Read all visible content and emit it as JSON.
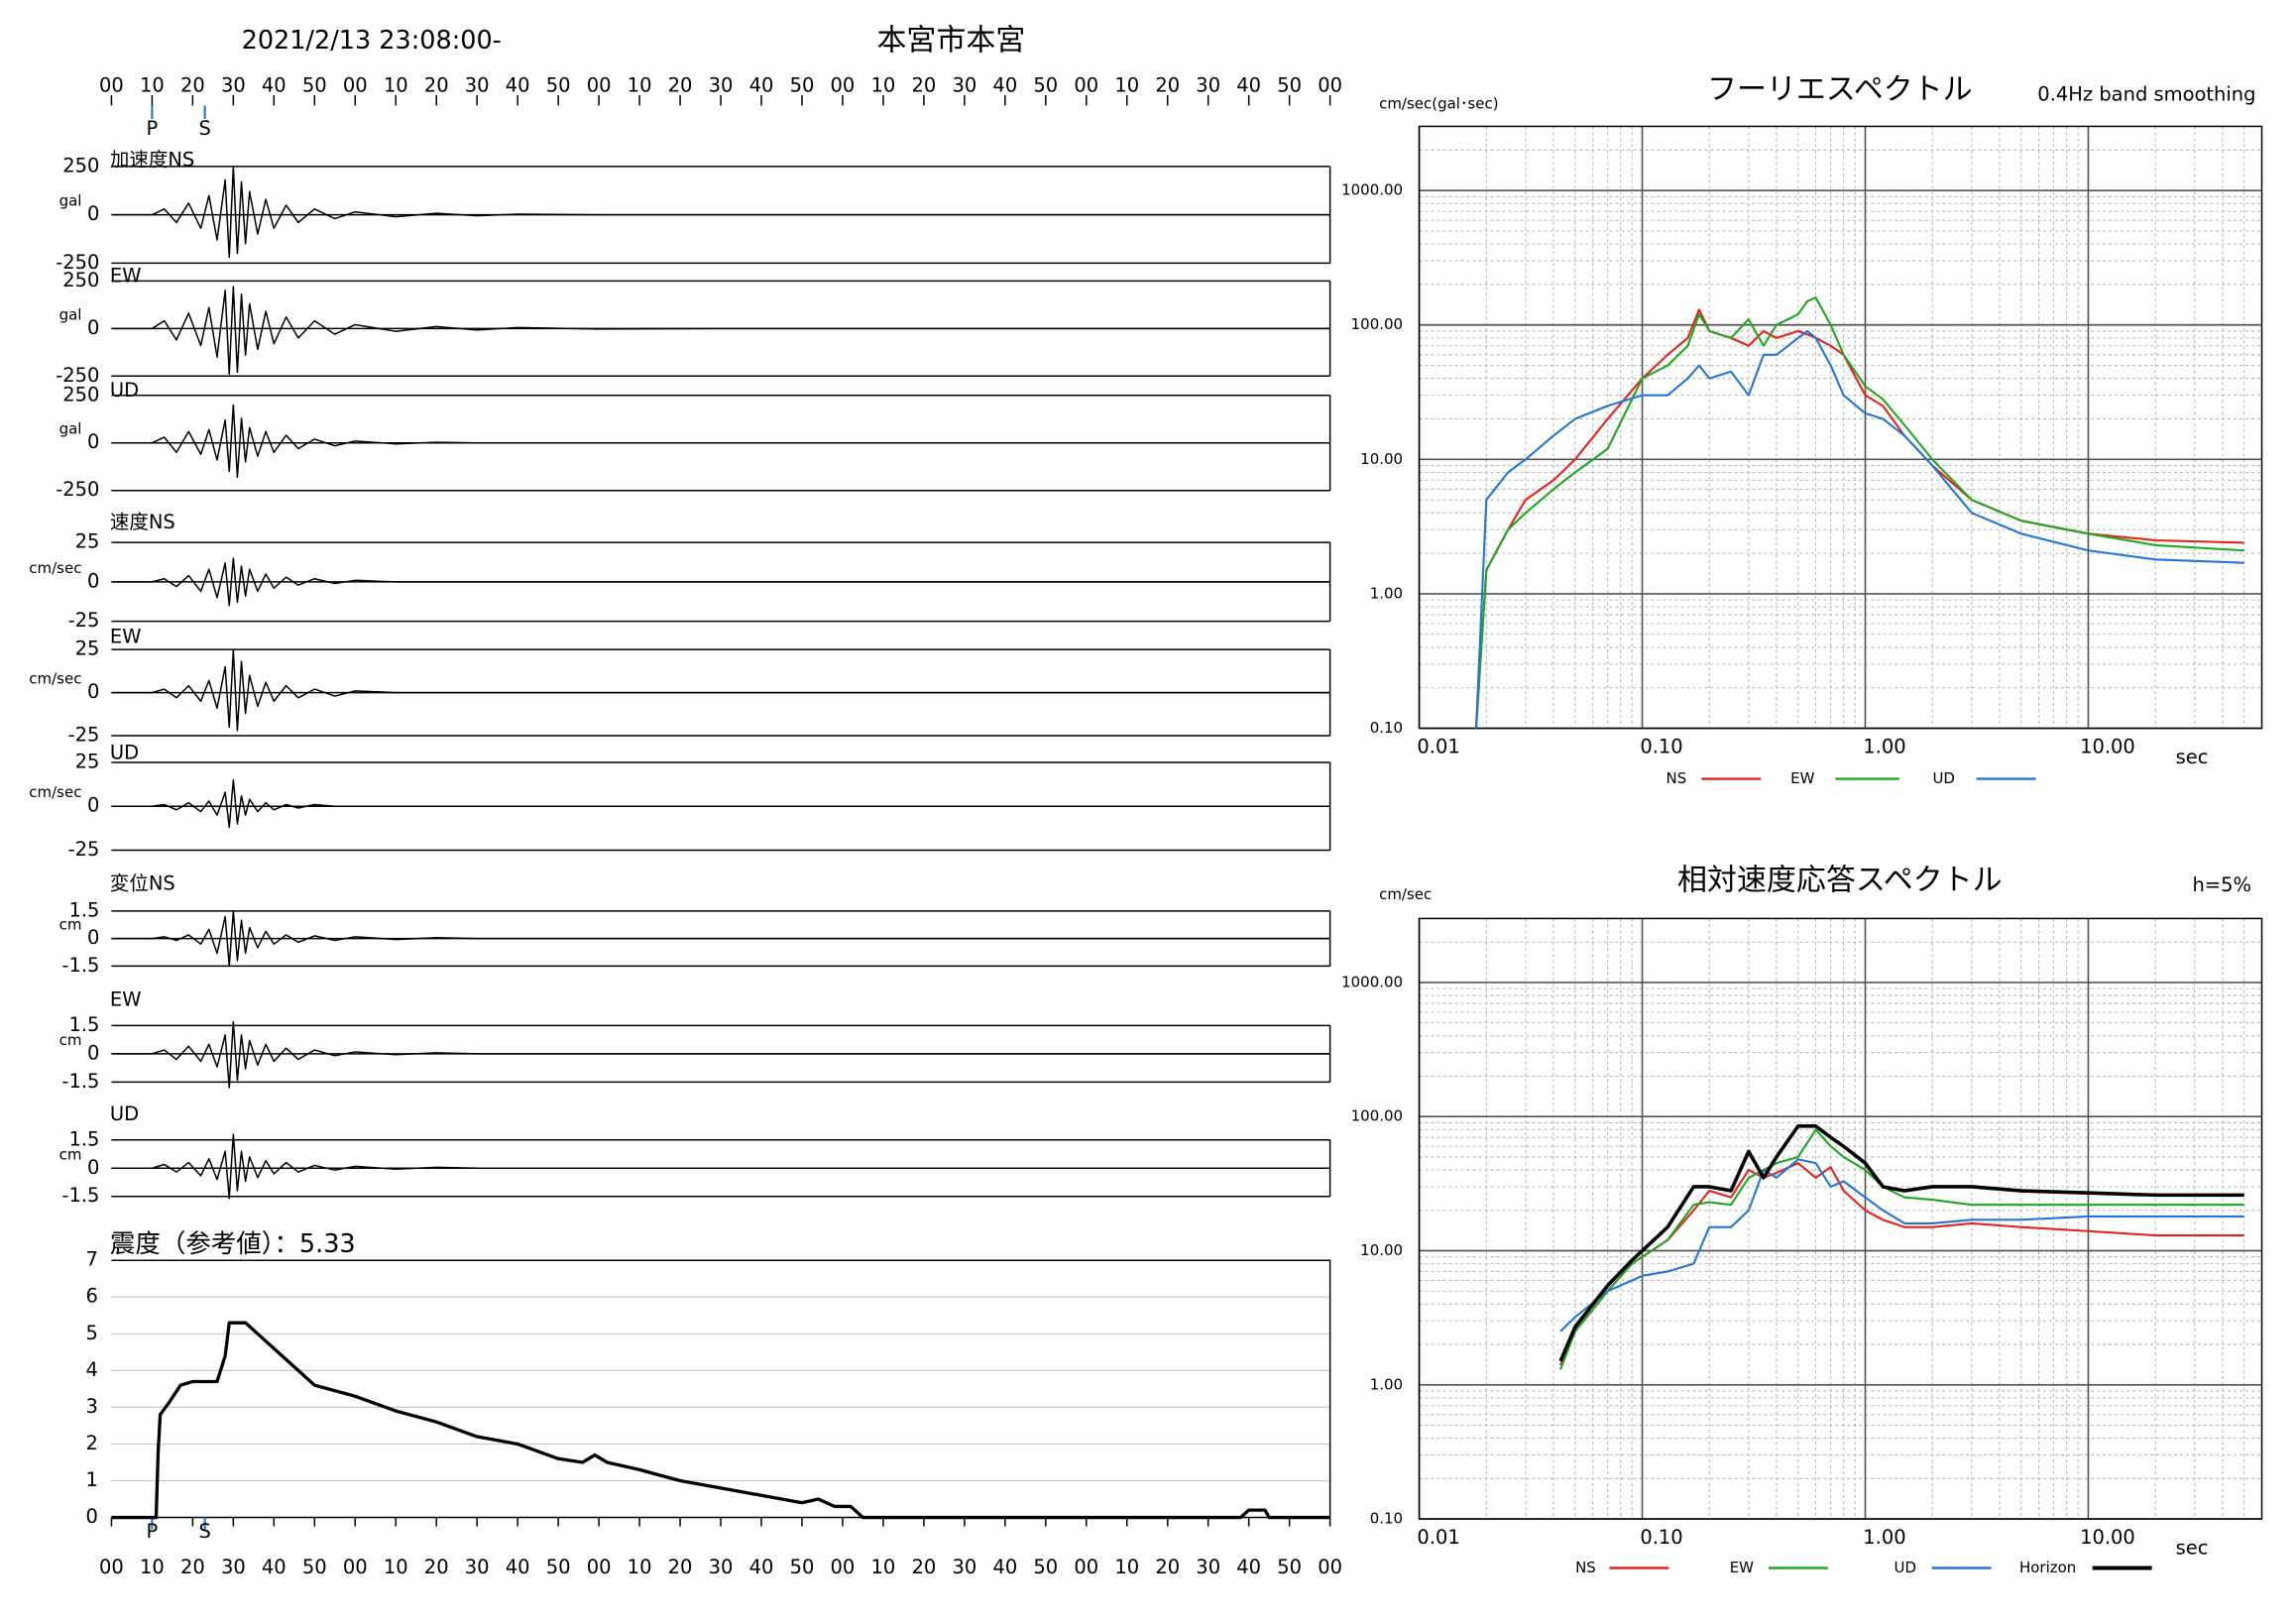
{
  "chart_data": [
    {
      "type": "line",
      "title": "本宮市本宮",
      "subtitle": "2021/2/13 23:08:00-",
      "xlim": [
        0,
        300
      ],
      "xticks": [
        {
          "value": 0,
          "label": "00"
        },
        10,
        20,
        30,
        40,
        50,
        {
          "value": 60,
          "label": "00"
        },
        {
          "value": 70,
          "label": "10"
        },
        {
          "value": 80,
          "label": "20"
        },
        {
          "value": 90,
          "label": "30"
        },
        {
          "value": 100,
          "label": "40"
        },
        {
          "value": 110,
          "label": "50"
        },
        {
          "value": 120,
          "label": "00"
        },
        {
          "value": 130,
          "label": "10"
        },
        {
          "value": 140,
          "label": "20"
        },
        {
          "value": 150,
          "label": "30"
        },
        {
          "value": 160,
          "label": "40"
        },
        {
          "value": 170,
          "label": "50"
        },
        {
          "value": 180,
          "label": "00"
        },
        {
          "value": 190,
          "label": "10"
        },
        {
          "value": 200,
          "label": "20"
        },
        {
          "value": 210,
          "label": "30"
        },
        {
          "value": 220,
          "label": "40"
        },
        {
          "value": 230,
          "label": "50"
        },
        {
          "value": 240,
          "label": "00"
        },
        {
          "value": 250,
          "label": "10"
        },
        {
          "value": 260,
          "label": "20"
        },
        {
          "value": 270,
          "label": "30"
        },
        {
          "value": 280,
          "label": "40"
        },
        {
          "value": 290,
          "label": "50"
        },
        {
          "value": 300,
          "label": "00"
        }
      ],
      "phases": [
        {
          "label": "P",
          "value": 10
        },
        {
          "label": "S",
          "value": 23
        }
      ],
      "x": [
        0,
        10,
        13,
        16,
        19,
        22,
        24,
        26,
        28,
        29,
        30,
        31,
        32,
        33,
        34,
        36,
        38,
        40,
        43,
        46,
        50,
        55,
        60,
        70,
        80,
        90,
        100,
        120,
        150,
        200,
        250,
        300
      ],
      "panels": [
        {
          "label": "加速度NS",
          "unit": "gal",
          "ylim": [
            -250,
            250
          ],
          "yticks": [
            -250,
            0,
            250
          ],
          "color": "#000000",
          "values": [
            0,
            0,
            30,
            -40,
            60,
            -70,
            100,
            -130,
            180,
            -220,
            250,
            -200,
            170,
            -150,
            120,
            -100,
            80,
            -70,
            50,
            -40,
            30,
            -20,
            15,
            -10,
            8,
            -5,
            3,
            0,
            0,
            0,
            0,
            0
          ]
        },
        {
          "label": "EW",
          "unit": "gal",
          "ylim": [
            -250,
            250
          ],
          "yticks": [
            -250,
            0,
            250
          ],
          "color": "#000000",
          "values": [
            0,
            0,
            40,
            -60,
            80,
            -90,
            110,
            -150,
            200,
            -240,
            220,
            -230,
            180,
            -140,
            130,
            -110,
            90,
            -80,
            60,
            -50,
            40,
            -30,
            20,
            -15,
            10,
            -8,
            5,
            -3,
            0,
            0,
            0,
            0
          ]
        },
        {
          "label": "UD",
          "unit": "gal",
          "ylim": [
            -250,
            250
          ],
          "yticks": [
            -250,
            0,
            250
          ],
          "color": "#000000",
          "values": [
            0,
            0,
            30,
            -50,
            60,
            -60,
            70,
            -90,
            120,
            -150,
            200,
            -180,
            130,
            -100,
            80,
            -70,
            60,
            -50,
            40,
            -30,
            20,
            -15,
            10,
            -5,
            3,
            0,
            0,
            0,
            0,
            0,
            0,
            0
          ]
        },
        {
          "label": "速度NS",
          "unit": "cm/sec",
          "ylim": [
            -25,
            25
          ],
          "yticks": [
            -25,
            0,
            25
          ],
          "color": "#000000",
          "values": [
            0,
            0,
            2,
            -3,
            4,
            -6,
            8,
            -10,
            12,
            -15,
            15,
            -13,
            10,
            -9,
            8,
            -6,
            5,
            -4,
            3,
            -2,
            2,
            -1,
            1,
            0,
            0,
            0,
            0,
            0,
            0,
            0,
            0,
            0
          ]
        },
        {
          "label": "EW",
          "unit": "cm/sec",
          "ylim": [
            -25,
            25
          ],
          "yticks": [
            -25,
            0,
            25
          ],
          "color": "#000000",
          "values": [
            0,
            0,
            2,
            -3,
            4,
            -5,
            7,
            -9,
            15,
            -20,
            25,
            -22,
            18,
            -12,
            10,
            -8,
            6,
            -5,
            4,
            -3,
            2,
            -2,
            1,
            0,
            0,
            0,
            0,
            0,
            0,
            0,
            0,
            0
          ]
        },
        {
          "label": "UD",
          "unit": "cm/sec",
          "ylim": [
            -25,
            25
          ],
          "yticks": [
            -25,
            0,
            25
          ],
          "color": "#000000",
          "values": [
            0,
            0,
            1,
            -2,
            2,
            -3,
            3,
            -5,
            8,
            -12,
            15,
            -10,
            6,
            -5,
            4,
            -3,
            2,
            -2,
            1,
            -1,
            1,
            0,
            0,
            0,
            0,
            0,
            0,
            0,
            0,
            0,
            0,
            0
          ]
        },
        {
          "label": "変位NS",
          "unit": "cm",
          "ylim": [
            -1.5,
            1.5
          ],
          "yticks": [
            -1.5,
            0,
            1.5
          ],
          "color": "#000000",
          "values": [
            0,
            0,
            0.1,
            -0.1,
            0.2,
            -0.3,
            0.5,
            -0.8,
            1.2,
            -1.5,
            1.5,
            -1.2,
            1.0,
            -0.8,
            0.6,
            -0.5,
            0.4,
            -0.3,
            0.2,
            -0.2,
            0.15,
            -0.1,
            0.1,
            -0.05,
            0.05,
            0,
            0,
            0,
            0,
            0,
            0,
            0
          ]
        },
        {
          "label": "EW",
          "unit": "cm",
          "ylim": [
            -1.5,
            1.5
          ],
          "yticks": [
            -1.5,
            0,
            1.5
          ],
          "color": "#000000",
          "values": [
            0,
            0,
            0.2,
            -0.3,
            0.4,
            -0.4,
            0.5,
            -0.7,
            1.0,
            -1.8,
            1.7,
            -1.4,
            1.0,
            -0.8,
            0.7,
            -0.6,
            0.5,
            -0.4,
            0.3,
            -0.3,
            0.2,
            -0.1,
            0.1,
            -0.05,
            0.05,
            0,
            0,
            0,
            0,
            0,
            0,
            0
          ]
        },
        {
          "label": "UD",
          "unit": "cm",
          "ylim": [
            -1.5,
            1.5
          ],
          "yticks": [
            -1.5,
            0,
            1.5
          ],
          "color": "#000000",
          "values": [
            0,
            0,
            0.2,
            -0.2,
            0.3,
            -0.4,
            0.5,
            -0.6,
            0.9,
            -1.6,
            1.8,
            -1.2,
            0.9,
            -0.7,
            0.6,
            -0.5,
            0.4,
            -0.3,
            0.3,
            -0.2,
            0.15,
            -0.1,
            0.1,
            -0.05,
            0.05,
            0,
            0,
            0,
            0,
            0,
            0,
            0
          ]
        }
      ]
    },
    {
      "type": "line",
      "title": "震度（参考値）：5.33",
      "xlim": [
        0,
        300
      ],
      "xticks": [
        {
          "value": 0,
          "label": "00"
        },
        10,
        20,
        30,
        40,
        50,
        {
          "value": 60,
          "label": "00"
        },
        {
          "value": 70,
          "label": "10"
        },
        {
          "value": 80,
          "label": "20"
        },
        {
          "value": 90,
          "label": "30"
        },
        {
          "value": 100,
          "label": "40"
        },
        {
          "value": 110,
          "label": "50"
        },
        {
          "value": 120,
          "label": "00"
        },
        {
          "value": 130,
          "label": "10"
        },
        {
          "value": 140,
          "label": "20"
        },
        {
          "value": 150,
          "label": "30"
        },
        {
          "value": 160,
          "label": "40"
        },
        {
          "value": 170,
          "label": "50"
        },
        {
          "value": 180,
          "label": "00"
        },
        {
          "value": 190,
          "label": "10"
        },
        {
          "value": 200,
          "label": "20"
        },
        {
          "value": 210,
          "label": "30"
        },
        {
          "value": 220,
          "label": "40"
        },
        {
          "value": 230,
          "label": "50"
        },
        {
          "value": 240,
          "label": "00"
        },
        {
          "value": 250,
          "label": "10"
        },
        {
          "value": 260,
          "label": "20"
        },
        {
          "value": 270,
          "label": "30"
        },
        {
          "value": 280,
          "label": "40"
        },
        {
          "value": 290,
          "label": "50"
        },
        {
          "value": 300,
          "label": "00"
        }
      ],
      "phases": [
        {
          "label": "P",
          "value": 10
        },
        {
          "label": "S",
          "value": 23
        }
      ],
      "ylim": [
        0,
        7
      ],
      "yticks": [
        0,
        1,
        2,
        3,
        4,
        5,
        6,
        7
      ],
      "grid": true,
      "color": "#000000",
      "x": [
        0,
        10,
        11,
        11.5,
        12,
        14,
        17,
        20,
        26,
        28,
        29,
        33,
        36,
        40,
        45,
        50,
        60,
        70,
        80,
        90,
        100,
        110,
        116,
        119,
        122,
        130,
        140,
        150,
        160,
        170,
        174,
        178,
        182,
        185,
        278,
        280,
        284,
        285,
        300
      ],
      "values": [
        0,
        0,
        0,
        1.8,
        2.8,
        3.1,
        3.6,
        3.7,
        3.7,
        4.4,
        5.3,
        5.3,
        5.0,
        4.6,
        4.1,
        3.6,
        3.3,
        2.9,
        2.6,
        2.2,
        2.0,
        1.6,
        1.5,
        1.7,
        1.5,
        1.3,
        1.0,
        0.8,
        0.6,
        0.4,
        0.5,
        0.3,
        0.3,
        0,
        0,
        0.2,
        0.2,
        0,
        0
      ]
    },
    {
      "type": "line",
      "title": "フーリエスペクトル",
      "subtitle": "0.4Hz band smoothing",
      "ylabel": "cm/sec(gal･sec)",
      "xlabel": "sec",
      "xscale": "log",
      "yscale": "log",
      "grid": true,
      "xlim": [
        0.01,
        60
      ],
      "ylim": [
        0.1,
        3000
      ],
      "xticks": [
        0.01,
        {
          "value": 0.1,
          "label": "0.10"
        },
        {
          "value": 1,
          "label": "1.00"
        },
        {
          "value": 10,
          "label": "10.00"
        }
      ],
      "yticks": [
        {
          "value": 0.1,
          "label": "0.10"
        },
        {
          "value": 1,
          "label": "1.00"
        },
        {
          "value": 10,
          "label": "10.00"
        },
        {
          "value": 100,
          "label": "100.00"
        },
        {
          "value": 1000,
          "label": "1000.00"
        }
      ],
      "x": [
        0.018,
        0.02,
        0.025,
        0.03,
        0.04,
        0.05,
        0.07,
        0.1,
        0.13,
        0.16,
        0.18,
        0.2,
        0.25,
        0.3,
        0.35,
        0.4,
        0.5,
        0.55,
        0.6,
        0.7,
        0.8,
        1.0,
        1.2,
        1.5,
        2,
        3,
        5,
        10,
        20,
        50
      ],
      "series": [
        {
          "name": "NS",
          "color": "#e8211d",
          "values": [
            0.1,
            1.5,
            3,
            5,
            7,
            10,
            20,
            40,
            60,
            80,
            130,
            90,
            80,
            70,
            90,
            80,
            90,
            85,
            80,
            70,
            60,
            30,
            25,
            15,
            9,
            5,
            3.5,
            2.8,
            2.5,
            2.4
          ]
        },
        {
          "name": "EW",
          "color": "#1fa81f",
          "values": [
            0.1,
            1.5,
            3,
            4,
            6,
            8,
            12,
            40,
            50,
            70,
            120,
            90,
            80,
            110,
            70,
            100,
            120,
            150,
            160,
            100,
            60,
            35,
            28,
            18,
            10,
            5,
            3.5,
            2.8,
            2.3,
            2.1
          ]
        },
        {
          "name": "UD",
          "color": "#2077d8",
          "values": [
            0.1,
            5,
            8,
            10,
            15,
            20,
            25,
            30,
            30,
            40,
            50,
            40,
            45,
            30,
            60,
            60,
            80,
            90,
            80,
            50,
            30,
            22,
            20,
            15,
            9,
            4,
            2.8,
            2.1,
            1.8,
            1.7
          ]
        }
      ]
    },
    {
      "type": "line",
      "title": "相対速度応答スペクトル",
      "subtitle": "h=5%",
      "ylabel": "cm/sec",
      "xlabel": "sec",
      "xscale": "log",
      "yscale": "log",
      "grid": true,
      "xlim": [
        0.01,
        60
      ],
      "ylim": [
        0.1,
        3000
      ],
      "xticks": [
        0.01,
        {
          "value": 0.1,
          "label": "0.10"
        },
        {
          "value": 1,
          "label": "1.00"
        },
        {
          "value": 10,
          "label": "10.00"
        }
      ],
      "yticks": [
        {
          "value": 0.1,
          "label": "0.10"
        },
        {
          "value": 1,
          "label": "1.00"
        },
        {
          "value": 10,
          "label": "10.00"
        },
        {
          "value": 100,
          "label": "100.00"
        },
        {
          "value": 1000,
          "label": "1000.00"
        }
      ],
      "x": [
        0.043,
        0.05,
        0.07,
        0.09,
        0.1,
        0.13,
        0.17,
        0.2,
        0.25,
        0.3,
        0.35,
        0.4,
        0.5,
        0.6,
        0.7,
        0.8,
        1.0,
        1.2,
        1.5,
        2,
        3,
        5,
        10,
        20,
        50
      ],
      "series": [
        {
          "name": "NS",
          "color": "#e8211d",
          "values": [
            1.4,
            2.5,
            5,
            8,
            9,
            12,
            20,
            28,
            25,
            40,
            35,
            38,
            45,
            35,
            42,
            28,
            20,
            17,
            15,
            15,
            16,
            15,
            14,
            13,
            13
          ]
        },
        {
          "name": "EW",
          "color": "#1fa81f",
          "values": [
            1.3,
            2.5,
            5,
            8,
            9,
            12,
            22,
            23,
            22,
            35,
            40,
            45,
            50,
            80,
            60,
            50,
            40,
            30,
            25,
            24,
            22,
            22,
            22,
            22,
            22
          ]
        },
        {
          "name": "UD",
          "color": "#2077d8",
          "values": [
            2.5,
            3.2,
            5,
            6,
            6.5,
            7,
            8,
            15,
            15,
            20,
            40,
            35,
            48,
            45,
            30,
            33,
            25,
            20,
            16,
            16,
            17,
            17,
            18,
            18,
            18
          ]
        },
        {
          "name": "Horizon",
          "color": "#000000",
          "values": [
            1.5,
            2.7,
            5.5,
            8.5,
            10,
            15,
            30,
            30,
            28,
            55,
            35,
            50,
            85,
            85,
            70,
            60,
            45,
            30,
            28,
            30,
            30,
            28,
            27,
            26,
            26
          ]
        }
      ]
    }
  ]
}
